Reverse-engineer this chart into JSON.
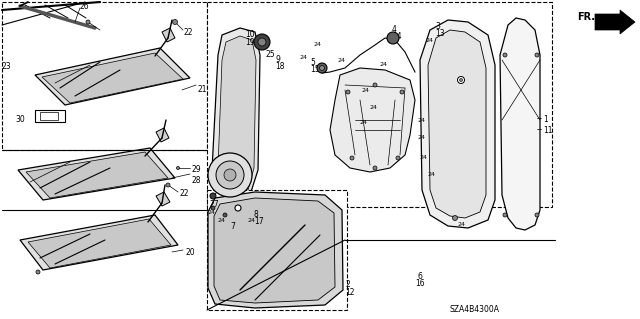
{
  "bg": "#ffffff",
  "fw": 6.4,
  "fh": 3.19,
  "dpi": 100,
  "diagram_id": "SZA4B4300A"
}
